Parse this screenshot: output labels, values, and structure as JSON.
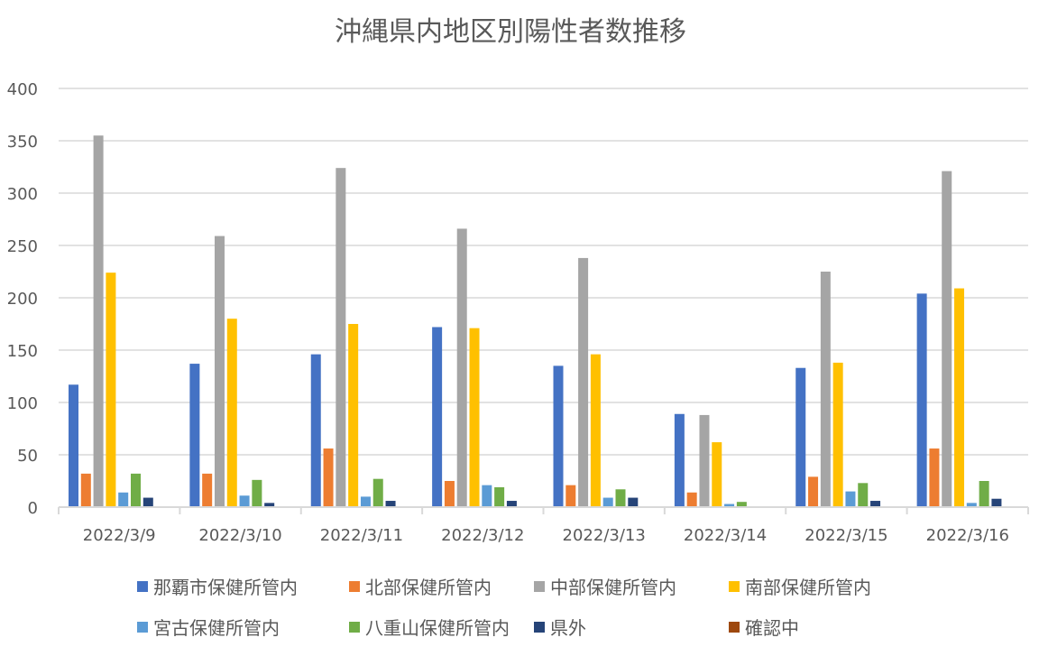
{
  "chart_data": {
    "type": "bar",
    "title": "沖縄県内地区別陽性者数推移",
    "xlabel": "",
    "ylabel": "",
    "ylim": [
      0,
      400
    ],
    "yticks": [
      0,
      50,
      100,
      150,
      200,
      250,
      300,
      350,
      400
    ],
    "grid": true,
    "legend_position": "bottom",
    "categories": [
      "2022/3/9",
      "2022/3/10",
      "2022/3/11",
      "2022/3/12",
      "2022/3/13",
      "2022/3/14",
      "2022/3/15",
      "2022/3/16"
    ],
    "series": [
      {
        "name": "那覇市保健所管内",
        "color": "#4472C4",
        "values": [
          117,
          137,
          146,
          172,
          135,
          89,
          133,
          204
        ]
      },
      {
        "name": "北部保健所管内",
        "color": "#ED7D31",
        "values": [
          32,
          32,
          56,
          25,
          21,
          14,
          29,
          56
        ]
      },
      {
        "name": "中部保健所管内",
        "color": "#A5A5A5",
        "values": [
          355,
          259,
          324,
          266,
          238,
          88,
          225,
          321
        ]
      },
      {
        "name": "南部保健所管内",
        "color": "#FFC000",
        "values": [
          224,
          180,
          175,
          171,
          146,
          62,
          138,
          209
        ]
      },
      {
        "name": "宮古保健所管内",
        "color": "#5B9BD5",
        "values": [
          14,
          11,
          10,
          21,
          9,
          3,
          15,
          4
        ]
      },
      {
        "name": "八重山保健所管内",
        "color": "#70AD47",
        "values": [
          32,
          26,
          27,
          19,
          17,
          5,
          23,
          25
        ]
      },
      {
        "name": "県外",
        "color": "#264478",
        "values": [
          9,
          4,
          6,
          6,
          9,
          0,
          6,
          8
        ]
      },
      {
        "name": "確認中",
        "color": "#9E480E",
        "values": [
          0,
          0,
          0,
          0,
          0,
          0,
          0,
          0
        ]
      }
    ]
  }
}
